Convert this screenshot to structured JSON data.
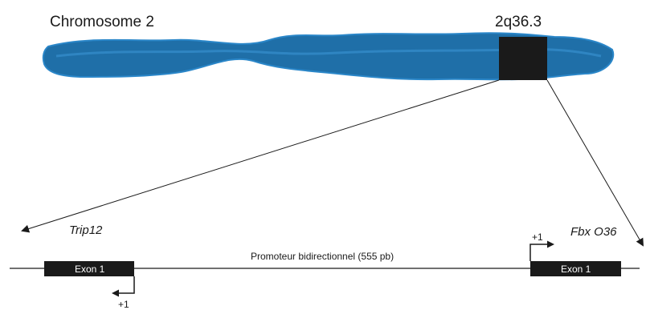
{
  "chromosome": {
    "label": "Chromosome  2",
    "band": "2q36.3",
    "fill_color": "#1f6fa8",
    "highlight_color": "#1a1a1a"
  },
  "promoter": {
    "label": "Promoteur bidirectionnel  (555 pb)"
  },
  "genes": {
    "left": {
      "name": "Trip12",
      "exon_label": "Exon 1",
      "tss_label": "+1"
    },
    "right": {
      "name": "Fbx O36",
      "exon_label": "Exon 1",
      "tss_label": "+1"
    }
  }
}
